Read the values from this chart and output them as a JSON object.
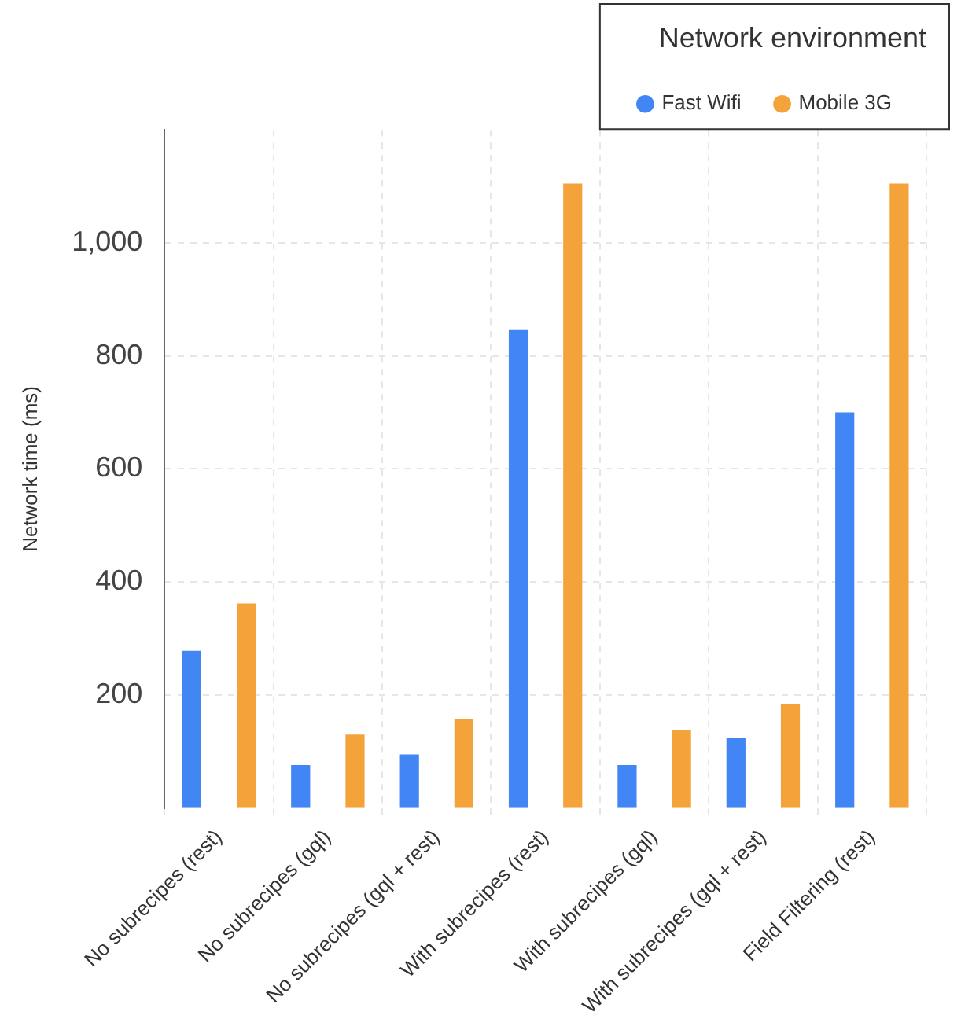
{
  "chart_data": {
    "type": "bar",
    "ylabel": "Network time (ms)",
    "legend_title": "Network environment",
    "categories": [
      "No subrecipes (rest)",
      "No subrecipes (gql)",
      "No subrecipes (gql + rest)",
      "With subrecipes (rest)",
      "With subrecipes (gql)",
      "With subrecipes (gql + rest)",
      "Field Filtering (rest)"
    ],
    "series": [
      {
        "name": "Fast Wifi",
        "color": "#4285f4",
        "values": [
          278,
          76,
          95,
          846,
          76,
          124,
          700
        ]
      },
      {
        "name": "Mobile 3G",
        "color": "#f4a23a",
        "values": [
          362,
          130,
          157,
          1105,
          138,
          184,
          1105
        ]
      }
    ],
    "ylim": [
      0,
      1200
    ],
    "yticks": [
      200,
      400,
      600,
      800,
      {
        "value": 1000,
        "label": "1,000"
      }
    ],
    "grid": true,
    "legend": "top right"
  }
}
